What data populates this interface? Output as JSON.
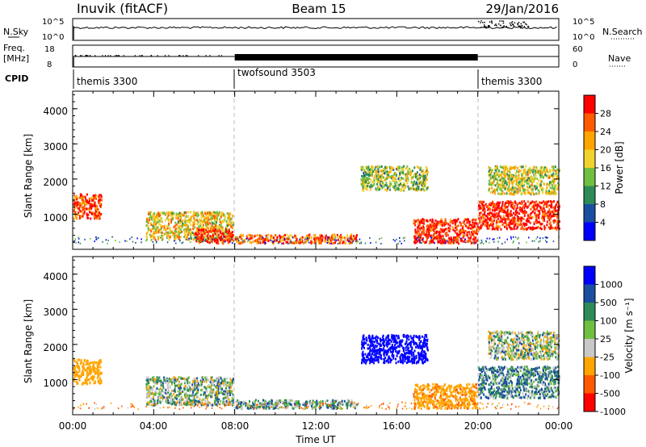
{
  "header": {
    "site": "Inuvik (fitACF)",
    "beam": "Beam 15",
    "date": "29/Jan/2016"
  },
  "panels": {
    "nsky": {
      "left_label": "N.Sky",
      "right_label": "N.Search",
      "left_ticks": [
        "10^5",
        "10^0"
      ],
      "right_ticks": [
        "10^5",
        "10^0"
      ]
    },
    "freq": {
      "left_label_1": "Freq.",
      "left_label_2": "[MHz]",
      "right_label": "Nave",
      "left_ticks": [
        "18",
        "8"
      ],
      "right_ticks": [
        "60",
        "0"
      ]
    },
    "cpid": {
      "label": "CPID",
      "programs": [
        "themis 3300",
        "twofsound 3503",
        "themis 3300"
      ]
    }
  },
  "power_panel": {
    "ylabel": "Slant Range [km]",
    "yticks": [
      "4000",
      "3000",
      "2000",
      "1000"
    ],
    "colorbar_label": "Power [dB]",
    "colorbar_ticks": [
      "28",
      "24",
      "20",
      "16",
      "12",
      "8",
      "4"
    ],
    "colors": [
      "#0000ff",
      "#1a4ea0",
      "#2e8b57",
      "#6fbf40",
      "#f2d22e",
      "#ffa500",
      "#ff5a00",
      "#ff0000"
    ]
  },
  "velocity_panel": {
    "ylabel": "Slant Range [km]",
    "yticks": [
      "4000",
      "3000",
      "2000",
      "1000"
    ],
    "colorbar_label": "Velocity [m s⁻¹]",
    "colorbar_ticks": [
      "1000",
      "500",
      "100",
      "25",
      "-25",
      "-100",
      "-500",
      "-1000"
    ],
    "colors": [
      "#ff0000",
      "#ff5a00",
      "#ffa500",
      "#c8c8c8",
      "#6fbf40",
      "#2e8b57",
      "#1a4ea0",
      "#0000ff"
    ]
  },
  "x_axis": {
    "label": "Time UT",
    "ticks": [
      "00:00",
      "04:00",
      "08:00",
      "12:00",
      "16:00",
      "20:00",
      "00:00"
    ]
  },
  "chart_data": [
    {
      "type": "line",
      "title": "N.Sky / N.Search",
      "x": [
        0,
        4,
        8,
        12,
        16,
        20,
        24
      ],
      "series": [
        {
          "name": "N.Sky",
          "values": [
            100000,
            100000,
            100000,
            100000,
            100000,
            100000,
            100000
          ]
        }
      ]
    },
    {
      "type": "line",
      "title": "Freq. [MHz] / Nave",
      "x": [
        0,
        4,
        8,
        12,
        16,
        20,
        24
      ],
      "series": [
        {
          "name": "Freq.",
          "values": [
            11,
            11,
            11,
            11,
            11,
            11,
            11
          ]
        }
      ]
    },
    {
      "type": "heatmap",
      "title": "Power [dB]",
      "x_range": [
        0,
        24
      ],
      "y_range": [
        0,
        4500
      ],
      "xlabel": "Time UT",
      "ylabel": "Slant Range [km]",
      "value_range": [
        0,
        30
      ],
      "regions": [
        {
          "t": [
            0.0,
            1.4
          ],
          "r": [
            900,
            1600
          ],
          "value": 26
        },
        {
          "t": [
            3.6,
            7.9
          ],
          "r": [
            300,
            1100
          ],
          "value": 18
        },
        {
          "t": [
            6.0,
            7.9
          ],
          "r": [
            200,
            600
          ],
          "value": 28
        },
        {
          "t": [
            8.0,
            14.0
          ],
          "r": [
            200,
            450
          ],
          "value": 24
        },
        {
          "t": [
            14.2,
            17.5
          ],
          "r": [
            1700,
            2400
          ],
          "value": 14
        },
        {
          "t": [
            16.8,
            20.0
          ],
          "r": [
            200,
            900
          ],
          "value": 28
        },
        {
          "t": [
            20.0,
            24.0
          ],
          "r": [
            600,
            1400
          ],
          "value": 28
        },
        {
          "t": [
            20.5,
            24.0
          ],
          "r": [
            1600,
            2400
          ],
          "value": 16
        }
      ]
    },
    {
      "type": "heatmap",
      "title": "Velocity [m s⁻¹]",
      "x_range": [
        0,
        24
      ],
      "y_range": [
        0,
        4500
      ],
      "xlabel": "Time UT",
      "ylabel": "Slant Range [km]",
      "value_range": [
        -1000,
        1000
      ],
      "regions": [
        {
          "t": [
            0.0,
            1.4
          ],
          "r": [
            900,
            1600
          ],
          "value": -300
        },
        {
          "t": [
            3.6,
            7.9
          ],
          "r": [
            300,
            1100
          ],
          "value": 0
        },
        {
          "t": [
            8.0,
            14.0
          ],
          "r": [
            200,
            450
          ],
          "value": 50
        },
        {
          "t": [
            14.2,
            17.5
          ],
          "r": [
            1500,
            2300
          ],
          "value": 800
        },
        {
          "t": [
            16.8,
            20.0
          ],
          "r": [
            200,
            900
          ],
          "value": -400
        },
        {
          "t": [
            20.0,
            24.0
          ],
          "r": [
            500,
            1400
          ],
          "value": 80
        },
        {
          "t": [
            20.5,
            24.0
          ],
          "r": [
            1600,
            2400
          ],
          "value": -20
        }
      ]
    }
  ]
}
